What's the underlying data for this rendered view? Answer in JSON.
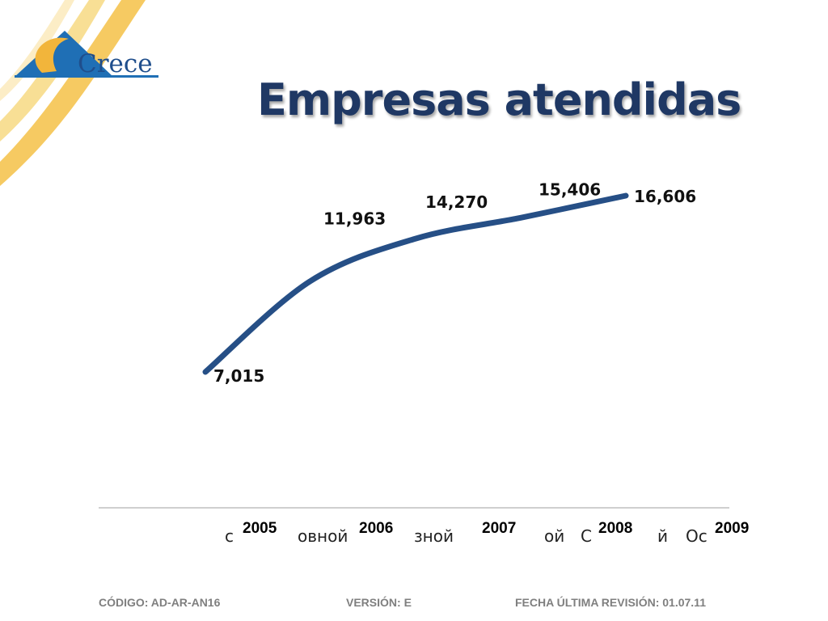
{
  "logo": {
    "text": "Crece"
  },
  "title": "Empresas atendidas",
  "chart_data": {
    "type": "line",
    "title": "Empresas atendidas",
    "categories": [
      "2005",
      "2006",
      "2007",
      "2008",
      "2009"
    ],
    "series": [
      {
        "values": [
          7015,
          11963,
          14270,
          15406,
          16606
        ]
      }
    ],
    "data_labels": [
      "7,015",
      "11,963",
      "14,270",
      "15,406",
      "16,606"
    ],
    "overlapped_labels": [
      "с",
      "овной",
      "зной",
      "ой",
      "С",
      "й",
      "Ос"
    ],
    "line_color": "#264f86",
    "grid": false,
    "legend": "none"
  },
  "footer": {
    "code": "CÓDIGO: AD-AR-AN16",
    "version": "VERSIÓN:  E",
    "revision": "FECHA ÚLTIMA REVISIÓN: 01.07.11"
  }
}
